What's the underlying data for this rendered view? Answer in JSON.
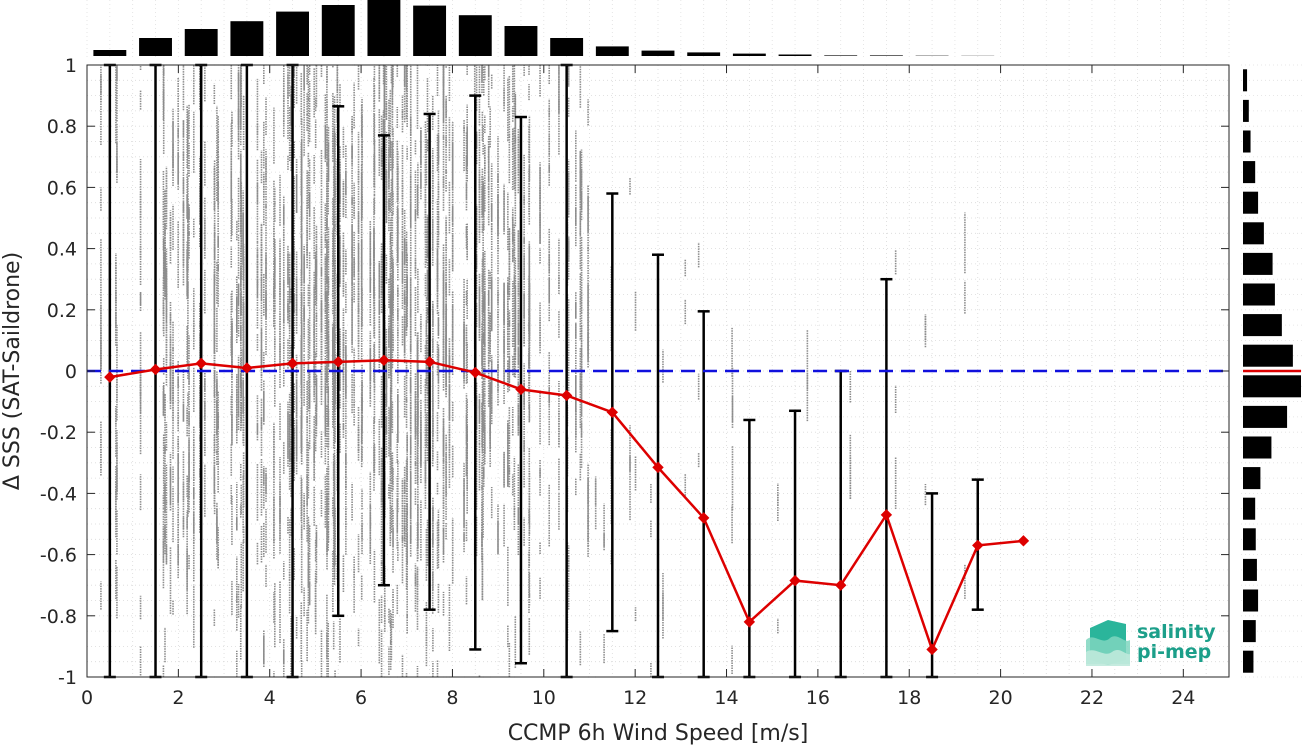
{
  "chart_data": {
    "type": "scatter",
    "xlabel": "CCMP 6h Wind Speed [m/s]",
    "ylabel": "Δ SSS (SAT-Saildrone)",
    "xlim": [
      0,
      25
    ],
    "ylim": [
      -1,
      1
    ],
    "x_ticks": [
      "0",
      "2",
      "4",
      "6",
      "8",
      "10",
      "12",
      "14",
      "16",
      "18",
      "20",
      "22",
      "24"
    ],
    "y_ticks": [
      "1",
      "0.8",
      "0.6",
      "0.4",
      "0.2",
      "0",
      "-0.2",
      "-0.4",
      "-0.6",
      "-0.8",
      "-1"
    ],
    "grid": true,
    "reference_line": {
      "y": 0,
      "style": "dashed",
      "color": "#1010dd"
    },
    "binned_mean": {
      "color": "#dd0000",
      "x": [
        0.5,
        1.5,
        2.5,
        3.5,
        4.5,
        5.5,
        6.5,
        7.5,
        8.5,
        9.5,
        10.5,
        11.5,
        12.5,
        13.5,
        14.5,
        15.5,
        16.5,
        17.5,
        18.5,
        19.5,
        20.5
      ],
      "y": [
        -0.02,
        0.005,
        0.025,
        0.01,
        0.025,
        0.03,
        0.035,
        0.03,
        -0.005,
        -0.06,
        -0.08,
        -0.135,
        -0.315,
        -0.48,
        -0.82,
        -0.685,
        -0.7,
        -0.47,
        -0.91,
        -0.57,
        -0.555
      ]
    },
    "error_bars": {
      "color": "#000000",
      "x": [
        0.5,
        1.5,
        2.5,
        3.5,
        4.5,
        5.5,
        6.5,
        7.5,
        8.5,
        9.5,
        10.5,
        11.5,
        12.5,
        13.5,
        14.5,
        15.5,
        16.5,
        17.5,
        18.5,
        19.5
      ],
      "low": [
        -1,
        -1,
        -1,
        -1,
        -1,
        -0.8,
        -0.7,
        -0.78,
        -0.91,
        -0.955,
        -1,
        -0.85,
        -1,
        -1,
        -1,
        -1,
        -1,
        -1,
        -1,
        -0.78
      ],
      "high": [
        1,
        1,
        1,
        1,
        1,
        0.865,
        0.77,
        0.84,
        0.9,
        0.83,
        1,
        0.58,
        0.38,
        0.195,
        -0.16,
        -0.13,
        0,
        0.3,
        -0.4,
        -0.355
      ]
    },
    "scatter_color": "#8c8c8c",
    "top_histogram": {
      "bin_centers": [
        0.5,
        1.5,
        2.5,
        3.5,
        4.5,
        5.5,
        6.5,
        7.5,
        8.5,
        9.5,
        10.5,
        11.5,
        12.5,
        13.5,
        14.5,
        15.5,
        16.5,
        17.5,
        18.5,
        19.5,
        20.5
      ],
      "relative_counts": [
        0.1,
        0.3,
        0.45,
        0.58,
        0.74,
        0.85,
        1.0,
        0.84,
        0.68,
        0.5,
        0.3,
        0.16,
        0.09,
        0.06,
        0.04,
        0.025,
        0.01,
        0.01,
        0.005,
        0.003,
        0
      ]
    },
    "right_histogram": {
      "bin_centers": [
        0.95,
        0.85,
        0.75,
        0.65,
        0.55,
        0.45,
        0.35,
        0.25,
        0.15,
        0.05,
        -0.05,
        -0.15,
        -0.25,
        -0.35,
        -0.45,
        -0.55,
        -0.65,
        -0.75,
        -0.85,
        -0.95
      ],
      "relative_counts": [
        0.07,
        0.1,
        0.13,
        0.21,
        0.26,
        0.36,
        0.51,
        0.55,
        0.67,
        0.86,
        1.0,
        0.76,
        0.49,
        0.3,
        0.21,
        0.22,
        0.24,
        0.26,
        0.22,
        0.18
      ],
      "median_line_color": "#dd0000"
    }
  },
  "logo": {
    "line1": "salinity",
    "line2": "pi-mep",
    "color": "#1c9f8a"
  }
}
